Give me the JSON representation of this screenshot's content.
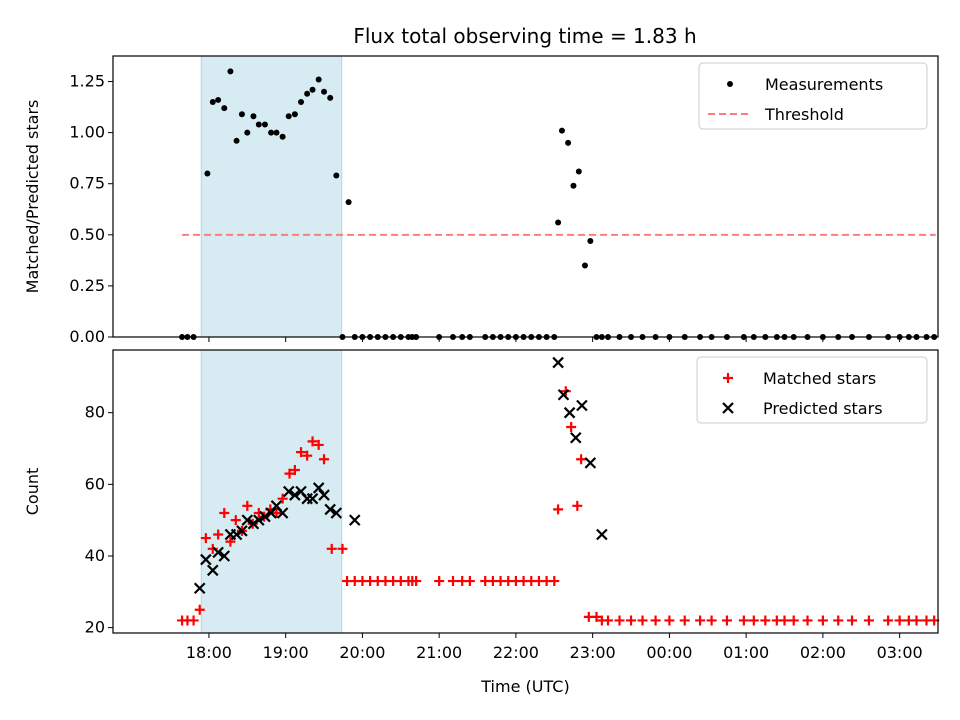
{
  "title": "Flux total observing time = 1.83 h",
  "colors": {
    "highlight": "#add8e6",
    "threshold": "#ff7b7b",
    "matched": "#ff0000",
    "predicted": "#000000",
    "measurement": "#000000"
  },
  "chart_data": [
    {
      "type": "scatter",
      "panel": "top",
      "ylabel": "Matched/Predicted stars",
      "xlabel": "",
      "ylim": [
        0,
        1.375
      ],
      "xlim": [
        16.75,
        27.5
      ],
      "yticks": [
        0.0,
        0.25,
        0.5,
        0.75,
        1.0,
        1.25
      ],
      "ytick_labels": [
        "0.00",
        "0.25",
        "0.50",
        "0.75",
        "1.00",
        "1.25"
      ],
      "highlight_span": [
        17.9,
        19.73
      ],
      "legend": {
        "position": "top-right",
        "entries": [
          "Measurements",
          "Threshold"
        ]
      },
      "threshold": {
        "name": "Threshold",
        "x": [
          17.65,
          27.47
        ],
        "y": 0.5
      },
      "series": [
        {
          "name": "Measurements",
          "x": [
            17.65,
            17.72,
            17.8,
            17.98,
            18.05,
            18.12,
            18.2,
            18.28,
            18.36,
            18.43,
            18.5,
            18.58,
            18.65,
            18.73,
            18.81,
            18.88,
            18.96,
            19.04,
            19.12,
            19.2,
            19.28,
            19.35,
            19.43,
            19.5,
            19.58,
            19.66,
            19.74,
            19.82,
            19.9,
            20.0,
            20.1,
            20.2,
            20.3,
            20.4,
            20.5,
            20.6,
            20.65,
            20.7,
            21.0,
            21.18,
            21.3,
            21.4,
            21.6,
            21.7,
            21.8,
            21.9,
            22.0,
            22.1,
            22.2,
            22.3,
            22.4,
            22.5,
            22.55,
            22.6,
            22.68,
            22.75,
            22.82,
            22.9,
            22.97,
            23.05,
            23.12,
            23.2,
            23.35,
            23.5,
            23.65,
            23.82,
            24.0,
            24.2,
            24.4,
            24.55,
            24.75,
            24.97,
            25.1,
            25.25,
            25.4,
            25.5,
            25.62,
            25.8,
            26.0,
            26.2,
            26.38,
            26.6,
            26.85,
            27.0,
            27.12,
            27.22,
            27.35,
            27.45
          ],
          "values": [
            0,
            0,
            0,
            0.8,
            1.15,
            1.16,
            1.12,
            1.3,
            0.96,
            1.09,
            1.0,
            1.08,
            1.04,
            1.04,
            1.0,
            1.0,
            0.98,
            1.08,
            1.09,
            1.15,
            1.19,
            1.21,
            1.26,
            1.2,
            1.17,
            0.79,
            0,
            0.66,
            0,
            0,
            0,
            0,
            0,
            0,
            0,
            0,
            0,
            0,
            0,
            0,
            0,
            0,
            0,
            0,
            0,
            0,
            0,
            0,
            0,
            0,
            0,
            0,
            0.56,
            1.01,
            0.95,
            0.74,
            0.81,
            0.35,
            0.47,
            0,
            0,
            0,
            0,
            0,
            0,
            0,
            0,
            0,
            0,
            0,
            0,
            0,
            0,
            0,
            0,
            0,
            0,
            0,
            0,
            0,
            0,
            0,
            0,
            0,
            0,
            0,
            0,
            0
          ]
        }
      ]
    },
    {
      "type": "scatter",
      "panel": "bottom",
      "ylabel": "Count",
      "xlabel": "Time (UTC)",
      "ylim": [
        18.5,
        97.5
      ],
      "xlim": [
        16.75,
        27.5
      ],
      "yticks": [
        20,
        40,
        60,
        80
      ],
      "ytick_labels": [
        "20",
        "40",
        "60",
        "80"
      ],
      "xticks": [
        18,
        19,
        20,
        21,
        22,
        23,
        24,
        25,
        26,
        27
      ],
      "xtick_labels": [
        "18:00",
        "19:00",
        "20:00",
        "21:00",
        "22:00",
        "23:00",
        "00:00",
        "01:00",
        "02:00",
        "03:00"
      ],
      "highlight_span": [
        17.9,
        19.73
      ],
      "legend": {
        "position": "top-right",
        "entries": [
          "Matched stars",
          "Predicted stars"
        ]
      },
      "series": [
        {
          "name": "Matched stars",
          "marker": "+",
          "x": [
            17.65,
            17.72,
            17.8,
            17.88,
            17.96,
            18.05,
            18.12,
            18.2,
            18.28,
            18.35,
            18.43,
            18.5,
            18.57,
            18.65,
            18.72,
            18.8,
            18.88,
            18.96,
            19.05,
            19.12,
            19.2,
            19.28,
            19.35,
            19.43,
            19.5,
            19.6,
            19.74,
            19.8,
            19.9,
            20.0,
            20.1,
            20.2,
            20.3,
            20.4,
            20.5,
            20.6,
            20.65,
            20.7,
            21.0,
            21.18,
            21.3,
            21.4,
            21.6,
            21.7,
            21.8,
            21.9,
            22.0,
            22.1,
            22.2,
            22.3,
            22.4,
            22.5,
            22.55,
            22.65,
            22.72,
            22.8,
            22.85,
            22.95,
            23.05,
            23.12,
            23.2,
            23.35,
            23.5,
            23.65,
            23.82,
            24.0,
            24.2,
            24.4,
            24.55,
            24.75,
            24.97,
            25.1,
            25.25,
            25.4,
            25.5,
            25.62,
            25.8,
            26.0,
            26.2,
            26.38,
            26.6,
            26.85,
            27.0,
            27.12,
            27.22,
            27.35,
            27.45
          ],
          "values": [
            22,
            22,
            22,
            25,
            45,
            42,
            46,
            52,
            44,
            50,
            47,
            54,
            49,
            52,
            51,
            53,
            52,
            56,
            63,
            64,
            69,
            68,
            72,
            71,
            67,
            42,
            42,
            33,
            33,
            33,
            33,
            33,
            33,
            33,
            33,
            33,
            33,
            33,
            33,
            33,
            33,
            33,
            33,
            33,
            33,
            33,
            33,
            33,
            33,
            33,
            33,
            33,
            53,
            86,
            76,
            54,
            67,
            23,
            23,
            22,
            22,
            22,
            22,
            22,
            22,
            22,
            22,
            22,
            22,
            22,
            22,
            22,
            22,
            22,
            22,
            22,
            22,
            22,
            22,
            22,
            22,
            22,
            22,
            22,
            22,
            22,
            22
          ]
        },
        {
          "name": "Predicted stars",
          "marker": "x",
          "x": [
            17.88,
            17.96,
            18.05,
            18.12,
            18.2,
            18.28,
            18.36,
            18.43,
            18.5,
            18.58,
            18.65,
            18.73,
            18.81,
            18.88,
            18.96,
            19.04,
            19.12,
            19.2,
            19.28,
            19.35,
            19.43,
            19.5,
            19.58,
            19.66,
            19.9,
            22.55,
            22.62,
            22.7,
            22.78,
            22.86,
            22.97,
            23.12
          ],
          "values": [
            31,
            39,
            36,
            41,
            40,
            46,
            46,
            47,
            50,
            49,
            50,
            51,
            52,
            54,
            52,
            58,
            57,
            58,
            56,
            56,
            59,
            57,
            53,
            52,
            50,
            94,
            85,
            80,
            73,
            82,
            66,
            46
          ]
        }
      ]
    }
  ]
}
